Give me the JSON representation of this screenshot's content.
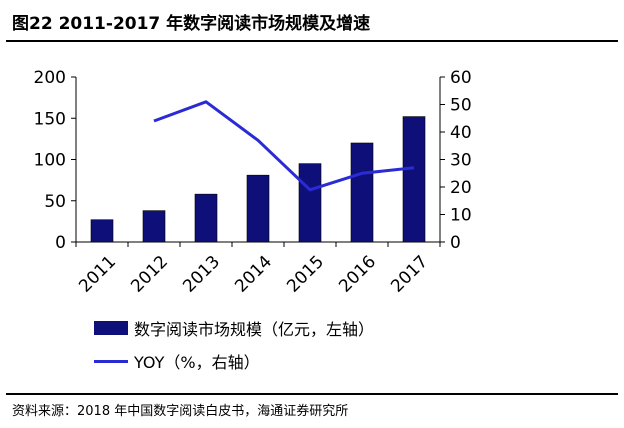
{
  "title": "图22 2011-2017 年数字阅读市场规模及增速",
  "source": "资料来源：2018 年中国数字阅读白皮书，海通证券研究所",
  "colors": {
    "bar": "#0f0f7a",
    "line": "#2b2bd6"
  },
  "chart_data": {
    "type": "bar+line",
    "categories": [
      "2011",
      "2012",
      "2013",
      "2014",
      "2015",
      "2016",
      "2017"
    ],
    "series": [
      {
        "name": "数字阅读市场规模（亿元，左轴）",
        "type": "bar",
        "axis": "left",
        "values": [
          27,
          38,
          58,
          81,
          95,
          120,
          152
        ]
      },
      {
        "name": "YOY（%，右轴）",
        "type": "line",
        "axis": "right",
        "values": [
          null,
          44,
          51,
          37,
          19,
          25,
          27
        ]
      }
    ],
    "left_axis": {
      "min": 0,
      "max": 200,
      "ticks": [
        "0",
        "50",
        "100",
        "150",
        "200"
      ]
    },
    "right_axis": {
      "min": 0,
      "max": 60,
      "ticks": [
        "0",
        "10",
        "20",
        "30",
        "40",
        "50",
        "60"
      ]
    },
    "grid": false,
    "legend_position": "bottom-left"
  }
}
